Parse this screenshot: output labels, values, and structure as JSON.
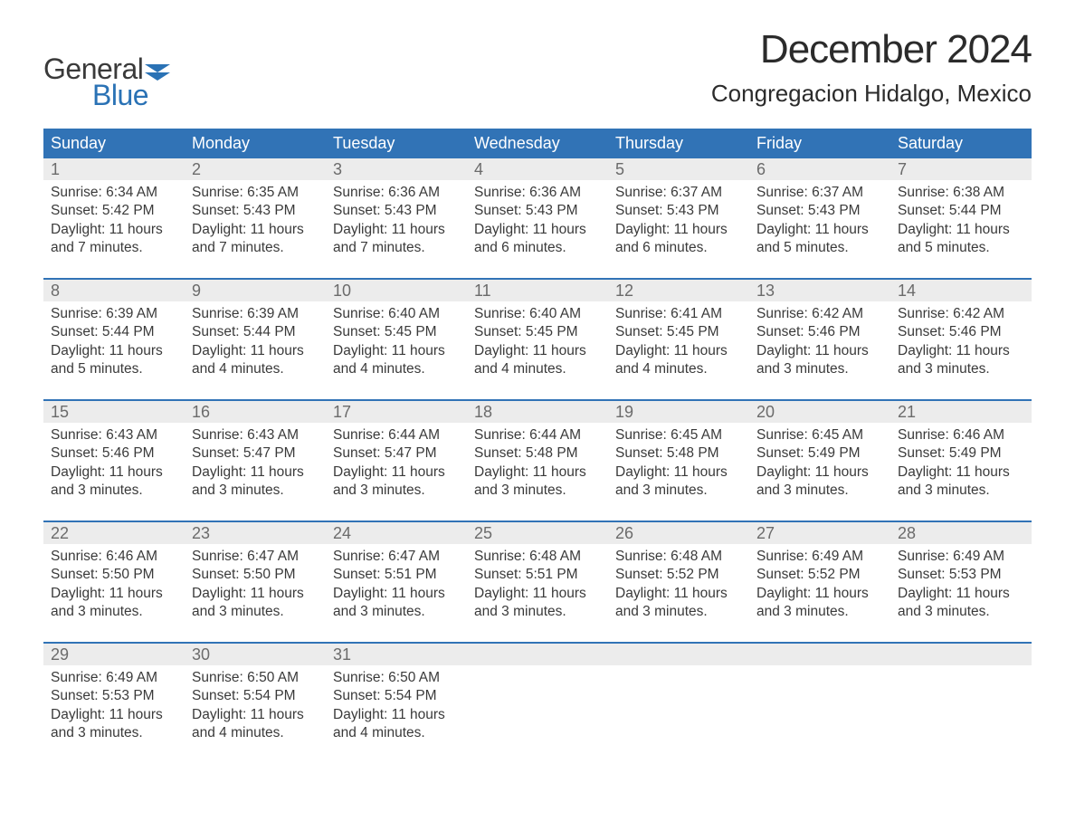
{
  "logo": {
    "text_general": "General",
    "text_blue": "Blue",
    "flag_color": "#2a72b5"
  },
  "heading": {
    "month": "December 2024",
    "location": "Congregacion Hidalgo, Mexico"
  },
  "colors": {
    "header_bg": "#3173b6",
    "header_text": "#ffffff",
    "daynum_bg": "#ececec",
    "daynum_text": "#6b6b6b",
    "body_text": "#3a3a3a",
    "rule": "#3173b6",
    "page_bg": "#ffffff"
  },
  "weekdays": [
    "Sunday",
    "Monday",
    "Tuesday",
    "Wednesday",
    "Thursday",
    "Friday",
    "Saturday"
  ],
  "weeks": [
    [
      {
        "n": "1",
        "sunrise": "6:34 AM",
        "sunset": "5:42 PM",
        "daylight": "11 hours and 7 minutes."
      },
      {
        "n": "2",
        "sunrise": "6:35 AM",
        "sunset": "5:43 PM",
        "daylight": "11 hours and 7 minutes."
      },
      {
        "n": "3",
        "sunrise": "6:36 AM",
        "sunset": "5:43 PM",
        "daylight": "11 hours and 7 minutes."
      },
      {
        "n": "4",
        "sunrise": "6:36 AM",
        "sunset": "5:43 PM",
        "daylight": "11 hours and 6 minutes."
      },
      {
        "n": "5",
        "sunrise": "6:37 AM",
        "sunset": "5:43 PM",
        "daylight": "11 hours and 6 minutes."
      },
      {
        "n": "6",
        "sunrise": "6:37 AM",
        "sunset": "5:43 PM",
        "daylight": "11 hours and 5 minutes."
      },
      {
        "n": "7",
        "sunrise": "6:38 AM",
        "sunset": "5:44 PM",
        "daylight": "11 hours and 5 minutes."
      }
    ],
    [
      {
        "n": "8",
        "sunrise": "6:39 AM",
        "sunset": "5:44 PM",
        "daylight": "11 hours and 5 minutes."
      },
      {
        "n": "9",
        "sunrise": "6:39 AM",
        "sunset": "5:44 PM",
        "daylight": "11 hours and 4 minutes."
      },
      {
        "n": "10",
        "sunrise": "6:40 AM",
        "sunset": "5:45 PM",
        "daylight": "11 hours and 4 minutes."
      },
      {
        "n": "11",
        "sunrise": "6:40 AM",
        "sunset": "5:45 PM",
        "daylight": "11 hours and 4 minutes."
      },
      {
        "n": "12",
        "sunrise": "6:41 AM",
        "sunset": "5:45 PM",
        "daylight": "11 hours and 4 minutes."
      },
      {
        "n": "13",
        "sunrise": "6:42 AM",
        "sunset": "5:46 PM",
        "daylight": "11 hours and 3 minutes."
      },
      {
        "n": "14",
        "sunrise": "6:42 AM",
        "sunset": "5:46 PM",
        "daylight": "11 hours and 3 minutes."
      }
    ],
    [
      {
        "n": "15",
        "sunrise": "6:43 AM",
        "sunset": "5:46 PM",
        "daylight": "11 hours and 3 minutes."
      },
      {
        "n": "16",
        "sunrise": "6:43 AM",
        "sunset": "5:47 PM",
        "daylight": "11 hours and 3 minutes."
      },
      {
        "n": "17",
        "sunrise": "6:44 AM",
        "sunset": "5:47 PM",
        "daylight": "11 hours and 3 minutes."
      },
      {
        "n": "18",
        "sunrise": "6:44 AM",
        "sunset": "5:48 PM",
        "daylight": "11 hours and 3 minutes."
      },
      {
        "n": "19",
        "sunrise": "6:45 AM",
        "sunset": "5:48 PM",
        "daylight": "11 hours and 3 minutes."
      },
      {
        "n": "20",
        "sunrise": "6:45 AM",
        "sunset": "5:49 PM",
        "daylight": "11 hours and 3 minutes."
      },
      {
        "n": "21",
        "sunrise": "6:46 AM",
        "sunset": "5:49 PM",
        "daylight": "11 hours and 3 minutes."
      }
    ],
    [
      {
        "n": "22",
        "sunrise": "6:46 AM",
        "sunset": "5:50 PM",
        "daylight": "11 hours and 3 minutes."
      },
      {
        "n": "23",
        "sunrise": "6:47 AM",
        "sunset": "5:50 PM",
        "daylight": "11 hours and 3 minutes."
      },
      {
        "n": "24",
        "sunrise": "6:47 AM",
        "sunset": "5:51 PM",
        "daylight": "11 hours and 3 minutes."
      },
      {
        "n": "25",
        "sunrise": "6:48 AM",
        "sunset": "5:51 PM",
        "daylight": "11 hours and 3 minutes."
      },
      {
        "n": "26",
        "sunrise": "6:48 AM",
        "sunset": "5:52 PM",
        "daylight": "11 hours and 3 minutes."
      },
      {
        "n": "27",
        "sunrise": "6:49 AM",
        "sunset": "5:52 PM",
        "daylight": "11 hours and 3 minutes."
      },
      {
        "n": "28",
        "sunrise": "6:49 AM",
        "sunset": "5:53 PM",
        "daylight": "11 hours and 3 minutes."
      }
    ],
    [
      {
        "n": "29",
        "sunrise": "6:49 AM",
        "sunset": "5:53 PM",
        "daylight": "11 hours and 3 minutes."
      },
      {
        "n": "30",
        "sunrise": "6:50 AM",
        "sunset": "5:54 PM",
        "daylight": "11 hours and 4 minutes."
      },
      {
        "n": "31",
        "sunrise": "6:50 AM",
        "sunset": "5:54 PM",
        "daylight": "11 hours and 4 minutes."
      },
      null,
      null,
      null,
      null
    ]
  ],
  "labels": {
    "sunrise_prefix": "Sunrise: ",
    "sunset_prefix": "Sunset: ",
    "daylight_prefix": "Daylight: "
  }
}
